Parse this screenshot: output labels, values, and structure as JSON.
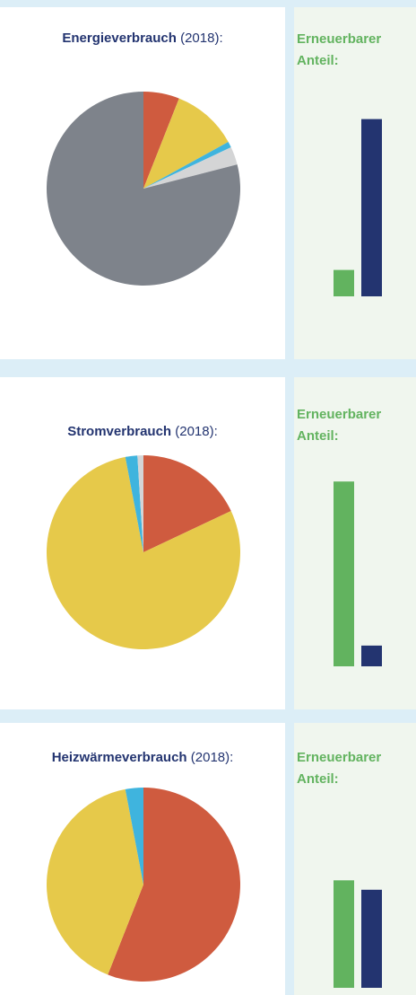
{
  "chart_data": [
    {
      "type": "pie",
      "title": "Energieverbrauch",
      "subtitle": "(2018):",
      "values": [
        6,
        11,
        1,
        3,
        79
      ],
      "colors": [
        "#cf5b3f",
        "#e6c94a",
        "#3fb4de",
        "#d4d5d6",
        "#7e838b"
      ]
    },
    {
      "type": "bar",
      "title": "Erneuerbarer Anteil:",
      "values": [
        14,
        94
      ],
      "colors": [
        "#62b35f",
        "#233470"
      ],
      "ylim": [
        0,
        100
      ]
    },
    {
      "type": "pie",
      "title": "Stromverbrauch",
      "subtitle": "(2018):",
      "values": [
        18,
        79,
        2,
        1
      ],
      "colors": [
        "#cf5b3f",
        "#e6c94a",
        "#3fb4de",
        "#d4d5d6"
      ]
    },
    {
      "type": "bar",
      "title": "Erneuerbarer Anteil:",
      "values": [
        98,
        11
      ],
      "colors": [
        "#62b35f",
        "#233470"
      ],
      "ylim": [
        0,
        100
      ]
    },
    {
      "type": "pie",
      "title": "Heizwärmeverbrauch",
      "subtitle": "(2018):",
      "values": [
        56,
        41,
        3
      ],
      "colors": [
        "#cf5b3f",
        "#e6c94a",
        "#3fb4de"
      ]
    },
    {
      "type": "bar",
      "title": "Erneuerbarer Anteil:",
      "values": [
        57,
        52
      ],
      "colors": [
        "#62b35f",
        "#233470"
      ],
      "ylim": [
        0,
        100
      ]
    }
  ]
}
